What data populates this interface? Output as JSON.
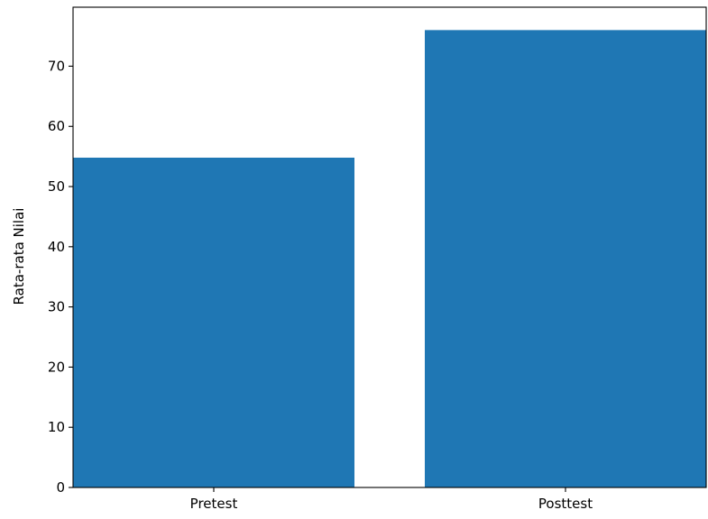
{
  "chart_data": {
    "type": "bar",
    "title": "",
    "xlabel": "",
    "ylabel": "Rata-rata Nilai",
    "categories": [
      "Pretest",
      "Posttest"
    ],
    "values": [
      54.8,
      76
    ],
    "ylim": [
      0,
      79.8
    ],
    "yticks": [
      0,
      10,
      20,
      30,
      40,
      50,
      60,
      70
    ],
    "bar_color": "#1f77b4",
    "grid": false,
    "legend": "none"
  }
}
